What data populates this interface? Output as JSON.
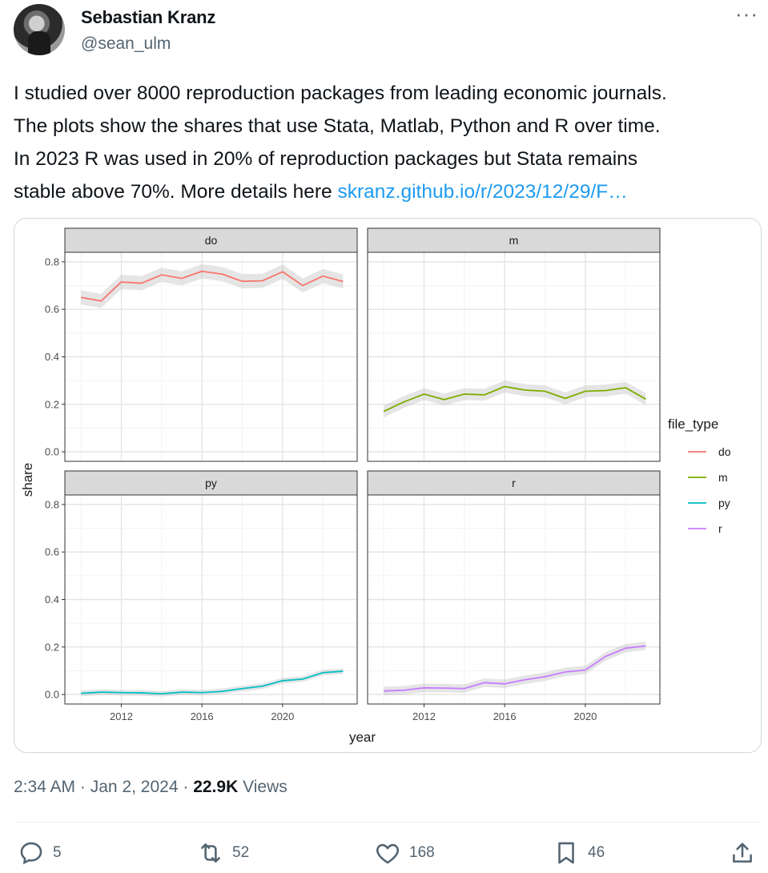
{
  "author": {
    "name": "Sebastian Kranz",
    "handle": "@sean_ulm"
  },
  "more_label": "···",
  "tweet": {
    "lines": [
      "I studied over 8000 reproduction packages from leading economic journals.",
      "The plots show the shares that use Stata, Matlab, Python and R over time.",
      "In 2023 R was used in 20% of reproduction packages but Stata remains"
    ],
    "last_line_text": "stable above 70%. More details here ",
    "link_text": "skranz.github.io/r/2023/12/29/F…"
  },
  "meta": {
    "time": "2:34 AM",
    "date": "Jan 2, 2024",
    "views_count": "22.9K",
    "views_label": "Views",
    "sep": "·"
  },
  "actions": {
    "reply_count": "5",
    "repost_count": "52",
    "like_count": "168",
    "bookmark_count": "46"
  },
  "chart_data": {
    "type": "line",
    "facets": [
      "do",
      "m",
      "py",
      "r"
    ],
    "xlabel": "year",
    "ylabel": "share",
    "legend_title": "file_type",
    "legend_position": "right",
    "x_ticks": [
      2012,
      2016,
      2020
    ],
    "y_ticks": [
      0.0,
      0.2,
      0.4,
      0.6,
      0.8
    ],
    "y_tick_labels": [
      "0.0",
      "0.2",
      "0.4",
      "0.6",
      "0.8"
    ],
    "xlim": [
      2009.2,
      2023.7
    ],
    "ylim": [
      -0.04,
      0.84
    ],
    "x": [
      2010,
      2011,
      2012,
      2013,
      2014,
      2015,
      2016,
      2017,
      2018,
      2019,
      2020,
      2021,
      2022,
      2023
    ],
    "series": [
      {
        "name": "do",
        "color": "#f8766d",
        "band": 0.03,
        "values": [
          0.65,
          0.635,
          0.715,
          0.71,
          0.745,
          0.73,
          0.76,
          0.748,
          0.718,
          0.72,
          0.758,
          0.7,
          0.74,
          0.717
        ]
      },
      {
        "name": "m",
        "color": "#7cae00",
        "band": 0.025,
        "values": [
          0.17,
          0.21,
          0.243,
          0.22,
          0.243,
          0.24,
          0.275,
          0.26,
          0.255,
          0.225,
          0.255,
          0.258,
          0.27,
          0.222
        ]
      },
      {
        "name": "py",
        "color": "#00bfc4",
        "band": 0.012,
        "values": [
          0.005,
          0.01,
          0.008,
          0.007,
          0.003,
          0.01,
          0.008,
          0.013,
          0.025,
          0.035,
          0.058,
          0.065,
          0.092,
          0.098
        ]
      },
      {
        "name": "r",
        "color": "#c77cff",
        "band": 0.018,
        "values": [
          0.015,
          0.018,
          0.028,
          0.027,
          0.025,
          0.05,
          0.045,
          0.062,
          0.075,
          0.095,
          0.103,
          0.16,
          0.195,
          0.205
        ]
      }
    ]
  }
}
